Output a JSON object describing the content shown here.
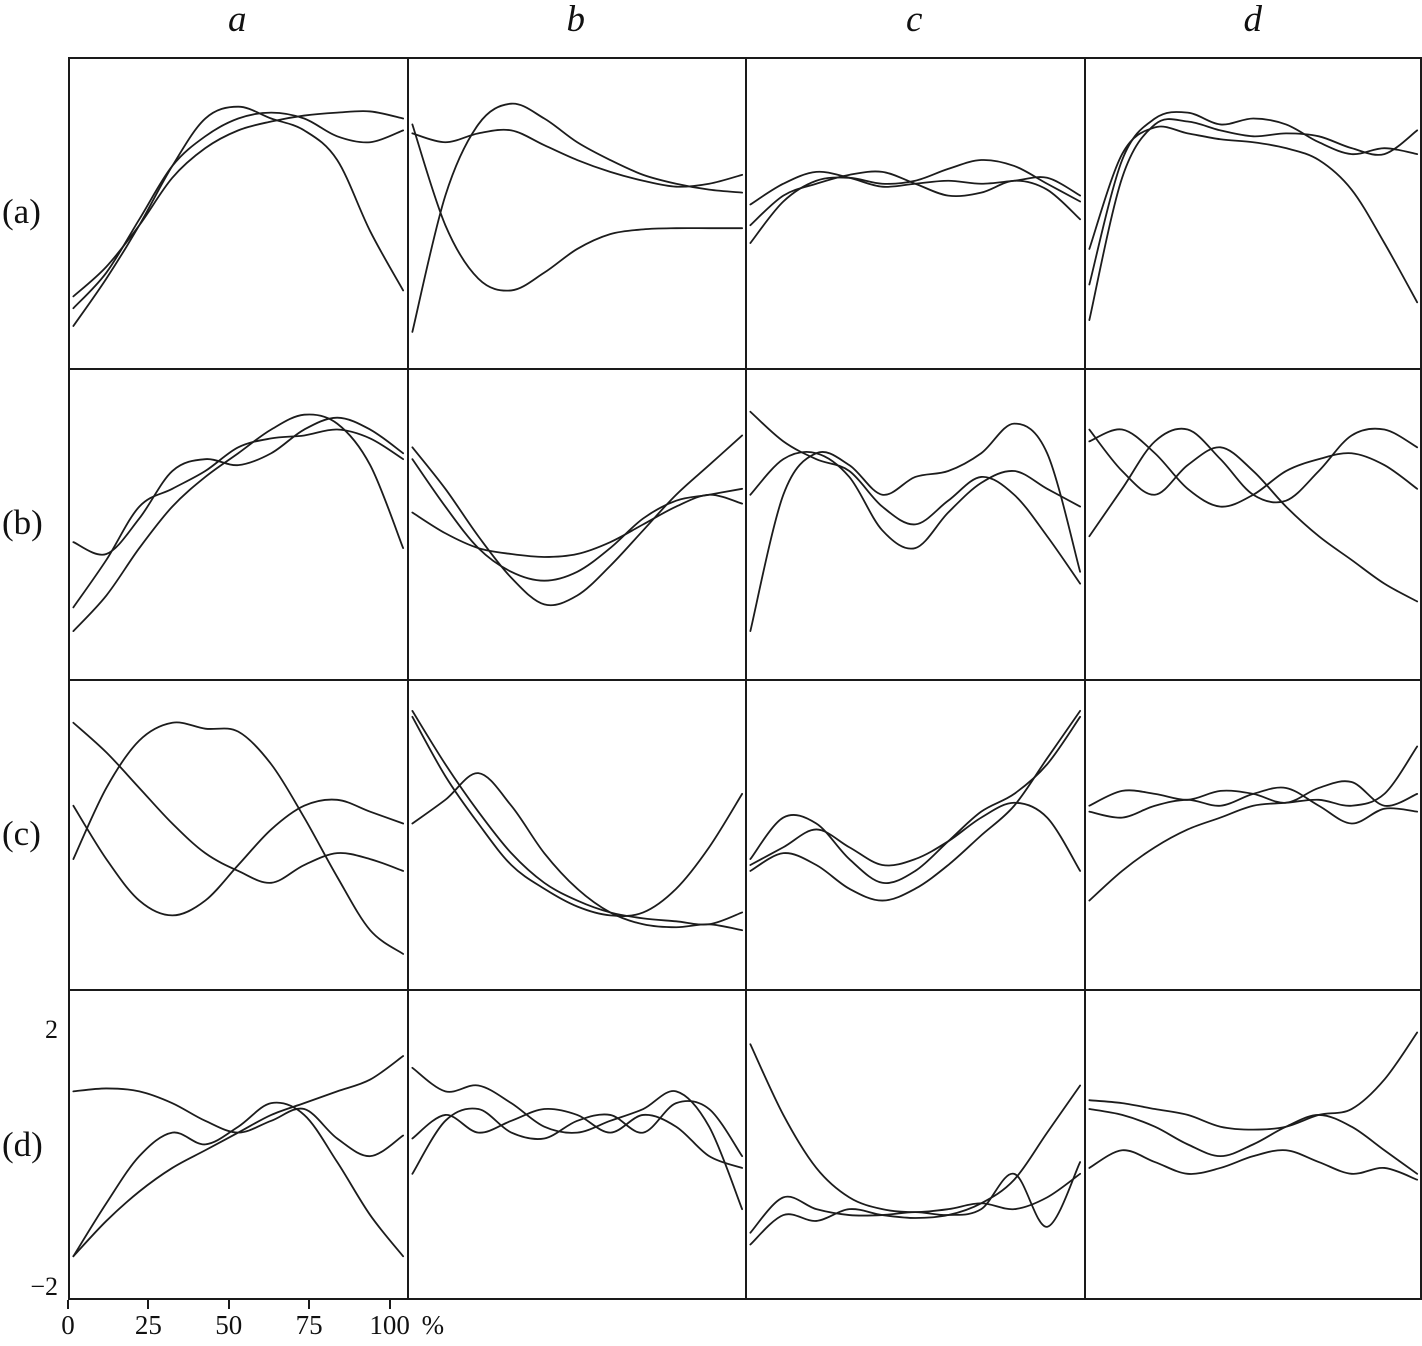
{
  "figure": {
    "col_headers": [
      "a",
      "b",
      "c",
      "d"
    ],
    "row_labels": [
      "(a)",
      "(b)",
      "(c)",
      "(d)"
    ],
    "line_color": "#1c1c1c",
    "background": "#ffffff"
  },
  "axis": {
    "x_tick_labels": [
      "0",
      "25",
      "50",
      "75",
      "100"
    ],
    "x_tick_positions": [
      0,
      23.75,
      47.5,
      71.25,
      95
    ],
    "x_unit": "%",
    "y_top_label": "2",
    "y_bottom_label": "−2",
    "xlim": [
      0,
      100
    ],
    "ylim": [
      -2,
      2
    ]
  },
  "chart_data": {
    "type": "line",
    "title": "4x4 grid of smoothed curve panels; columns a–d, rows (a)–(d); three unlabeled curves per panel",
    "x": [
      0,
      10,
      20,
      30,
      40,
      50,
      60,
      70,
      80,
      90,
      100
    ],
    "xlabel": "%",
    "ylabel": "",
    "ylim": [
      -2.5,
      2.5
    ],
    "grid": false,
    "legend": "none",
    "panels": [
      {
        "id": "aa",
        "row": "(a)",
        "col": "a",
        "series": [
          {
            "values": [
              -1.9,
              -1.1,
              -0.2,
              0.8,
              1.6,
              1.8,
              1.6,
              1.4,
              0.9,
              -0.3,
              -1.3
            ]
          },
          {
            "values": [
              -1.6,
              -1.0,
              -0.1,
              0.8,
              1.3,
              1.6,
              1.7,
              1.6,
              1.3,
              1.2,
              1.4
            ]
          },
          {
            "values": [
              -1.4,
              -0.9,
              -0.2,
              0.6,
              1.1,
              1.4,
              1.55,
              1.65,
              1.7,
              1.72,
              1.6
            ]
          }
        ]
      },
      {
        "id": "ab",
        "row": "(a)",
        "col": "b",
        "series": [
          {
            "values": [
              -2.0,
              0.3,
              1.5,
              1.85,
              1.6,
              1.2,
              0.9,
              0.65,
              0.5,
              0.4,
              0.35
            ]
          },
          {
            "values": [
              1.35,
              1.2,
              1.35,
              1.4,
              1.15,
              0.9,
              0.7,
              0.55,
              0.45,
              0.5,
              0.65
            ]
          },
          {
            "values": [
              1.5,
              -0.2,
              -1.1,
              -1.3,
              -1.0,
              -0.6,
              -0.35,
              -0.27,
              -0.25,
              -0.25,
              -0.25
            ]
          }
        ]
      },
      {
        "id": "ac",
        "row": "(a)",
        "col": "c",
        "series": [
          {
            "values": [
              -0.5,
              0.2,
              0.55,
              0.6,
              0.5,
              0.55,
              0.75,
              0.9,
              0.8,
              0.5,
              0.2
            ]
          },
          {
            "values": [
              0.15,
              0.5,
              0.7,
              0.6,
              0.45,
              0.5,
              0.55,
              0.5,
              0.55,
              0.6,
              0.3
            ]
          },
          {
            "values": [
              -0.2,
              0.3,
              0.5,
              0.65,
              0.7,
              0.5,
              0.3,
              0.35,
              0.55,
              0.4,
              -0.1
            ]
          }
        ]
      },
      {
        "id": "ad",
        "row": "(a)",
        "col": "d",
        "series": [
          {
            "values": [
              -1.8,
              0.6,
              1.5,
              1.55,
              1.4,
              1.3,
              1.35,
              1.3,
              1.1,
              1.0,
              1.4
            ]
          },
          {
            "values": [
              -1.2,
              0.9,
              1.6,
              1.7,
              1.5,
              1.6,
              1.5,
              1.2,
              1.0,
              1.1,
              1.0
            ]
          },
          {
            "values": [
              -0.6,
              1.0,
              1.45,
              1.35,
              1.25,
              1.2,
              1.1,
              0.9,
              0.4,
              -0.5,
              -1.5
            ]
          }
        ]
      },
      {
        "id": "ba",
        "row": "(b)",
        "col": "a",
        "series": [
          {
            "values": [
              -1.8,
              -1.2,
              -0.4,
              0.3,
              0.8,
              1.2,
              1.6,
              1.85,
              1.7,
              1.0,
              -0.4
            ]
          },
          {
            "values": [
              -0.3,
              -0.5,
              0.1,
              0.9,
              1.1,
              1.0,
              1.2,
              1.6,
              1.8,
              1.6,
              1.2
            ]
          },
          {
            "values": [
              -1.4,
              -0.6,
              0.3,
              0.6,
              0.9,
              1.3,
              1.45,
              1.5,
              1.6,
              1.45,
              1.1
            ]
          }
        ]
      },
      {
        "id": "bb",
        "row": "(b)",
        "col": "b",
        "series": [
          {
            "values": [
              1.3,
              0.6,
              -0.2,
              -0.9,
              -1.35,
              -1.2,
              -0.7,
              -0.1,
              0.5,
              1.0,
              1.5
            ]
          },
          {
            "values": [
              1.1,
              0.3,
              -0.4,
              -0.8,
              -0.95,
              -0.8,
              -0.4,
              0.1,
              0.4,
              0.5,
              0.6
            ]
          },
          {
            "values": [
              0.2,
              -0.15,
              -0.4,
              -0.5,
              -0.55,
              -0.5,
              -0.3,
              0.0,
              0.3,
              0.5,
              0.35
            ]
          }
        ]
      },
      {
        "id": "bc",
        "row": "(b)",
        "col": "c",
        "series": [
          {
            "values": [
              -1.8,
              0.5,
              1.2,
              1.0,
              0.5,
              0.8,
              0.9,
              1.2,
              1.7,
              1.2,
              -0.8
            ]
          },
          {
            "values": [
              1.9,
              1.4,
              1.1,
              0.9,
              0.3,
              0.0,
              0.4,
              0.8,
              0.5,
              -0.2,
              -1.0
            ]
          },
          {
            "values": [
              0.5,
              1.1,
              1.2,
              0.8,
              -0.1,
              -0.4,
              0.2,
              0.7,
              0.9,
              0.6,
              0.3
            ]
          }
        ]
      },
      {
        "id": "bd",
        "row": "(b)",
        "col": "d",
        "series": [
          {
            "values": [
              1.6,
              0.9,
              0.5,
              1.0,
              1.3,
              0.9,
              0.3,
              -0.2,
              -0.6,
              -1.0,
              -1.3
            ]
          },
          {
            "values": [
              -0.2,
              0.6,
              1.4,
              1.6,
              1.1,
              0.5,
              0.4,
              0.9,
              1.5,
              1.6,
              1.3
            ]
          },
          {
            "values": [
              1.4,
              1.6,
              1.2,
              0.6,
              0.3,
              0.5,
              0.9,
              1.1,
              1.2,
              1.0,
              0.6
            ]
          }
        ]
      },
      {
        "id": "ca",
        "row": "(c)",
        "col": "a",
        "series": [
          {
            "values": [
              1.9,
              1.4,
              0.8,
              0.2,
              -0.3,
              -0.6,
              -0.8,
              -0.5,
              -0.3,
              -0.4,
              -0.6
            ]
          },
          {
            "values": [
              -0.4,
              0.8,
              1.6,
              1.9,
              1.8,
              1.75,
              1.2,
              0.3,
              -0.7,
              -1.6,
              -2.0
            ]
          },
          {
            "values": [
              0.5,
              -0.4,
              -1.1,
              -1.35,
              -1.1,
              -0.5,
              0.1,
              0.5,
              0.6,
              0.4,
              0.2
            ]
          }
        ]
      },
      {
        "id": "cb",
        "row": "(c)",
        "col": "b",
        "series": [
          {
            "values": [
              2.1,
              1.2,
              0.4,
              -0.3,
              -0.8,
              -1.1,
              -1.3,
              -1.4,
              -1.45,
              -1.5,
              -1.3
            ]
          },
          {
            "values": [
              2.0,
              1.0,
              0.2,
              -0.5,
              -0.9,
              -1.2,
              -1.35,
              -1.3,
              -0.9,
              -0.2,
              0.7
            ]
          },
          {
            "values": [
              0.2,
              0.6,
              1.05,
              0.5,
              -0.3,
              -0.9,
              -1.3,
              -1.5,
              -1.55,
              -1.5,
              -1.6
            ]
          }
        ]
      },
      {
        "id": "cc",
        "row": "(c)",
        "col": "c",
        "series": [
          {
            "values": [
              -0.4,
              0.3,
              0.2,
              -0.4,
              -0.8,
              -0.6,
              -0.1,
              0.4,
              0.7,
              1.2,
              2.0
            ]
          },
          {
            "values": [
              -0.6,
              -0.3,
              -0.5,
              -0.9,
              -1.1,
              -0.9,
              -0.5,
              0.0,
              0.5,
              1.3,
              2.1
            ]
          },
          {
            "values": [
              -0.5,
              -0.2,
              0.1,
              -0.2,
              -0.5,
              -0.4,
              -0.1,
              0.3,
              0.55,
              0.3,
              -0.6
            ]
          }
        ]
      },
      {
        "id": "cd",
        "row": "(c)",
        "col": "d",
        "series": [
          {
            "values": [
              -1.1,
              -0.6,
              -0.2,
              0.1,
              0.3,
              0.5,
              0.55,
              0.6,
              0.5,
              0.7,
              1.5
            ]
          },
          {
            "values": [
              0.5,
              0.75,
              0.7,
              0.6,
              0.75,
              0.7,
              0.55,
              0.8,
              0.9,
              0.5,
              0.7
            ]
          },
          {
            "values": [
              0.4,
              0.3,
              0.5,
              0.6,
              0.5,
              0.7,
              0.8,
              0.5,
              0.2,
              0.45,
              0.4
            ]
          }
        ]
      },
      {
        "id": "da",
        "row": "(d)",
        "col": "a",
        "series": [
          {
            "values": [
              0.9,
              0.95,
              0.9,
              0.7,
              0.4,
              0.2,
              0.4,
              0.6,
              0.1,
              -0.2,
              0.15
            ]
          },
          {
            "values": [
              -1.9,
              -1.3,
              -0.8,
              -0.4,
              -0.1,
              0.2,
              0.5,
              0.7,
              0.9,
              1.1,
              1.5
            ]
          },
          {
            "values": [
              -1.9,
              -1.0,
              -0.2,
              0.2,
              0.0,
              0.3,
              0.7,
              0.5,
              -0.3,
              -1.2,
              -1.9
            ]
          }
        ]
      },
      {
        "id": "db",
        "row": "(d)",
        "col": "b",
        "series": [
          {
            "values": [
              1.3,
              0.9,
              1.0,
              0.7,
              0.3,
              0.2,
              0.4,
              0.6,
              0.9,
              0.3,
              -1.1
            ]
          },
          {
            "values": [
              -0.5,
              0.4,
              0.6,
              0.2,
              0.1,
              0.4,
              0.5,
              0.2,
              0.7,
              0.6,
              -0.2
            ]
          },
          {
            "values": [
              0.1,
              0.5,
              0.2,
              0.4,
              0.6,
              0.5,
              0.2,
              0.5,
              0.3,
              -0.2,
              -0.4
            ]
          }
        ]
      },
      {
        "id": "dc",
        "row": "(d)",
        "col": "c",
        "series": [
          {
            "values": [
              1.7,
              0.5,
              -0.4,
              -0.9,
              -1.1,
              -1.15,
              -1.1,
              -1.0,
              -1.1,
              -0.9,
              -0.5
            ]
          },
          {
            "values": [
              -1.5,
              -0.9,
              -1.1,
              -1.2,
              -1.2,
              -1.15,
              -1.2,
              -1.1,
              -0.5,
              -1.4,
              -0.3
            ]
          },
          {
            "values": [
              -1.7,
              -1.2,
              -1.3,
              -1.1,
              -1.2,
              -1.25,
              -1.2,
              -1.0,
              -0.6,
              0.2,
              1.0
            ]
          }
        ]
      },
      {
        "id": "dd",
        "row": "(d)",
        "col": "d",
        "series": [
          {
            "values": [
              0.75,
              0.7,
              0.6,
              0.5,
              0.3,
              0.25,
              0.3,
              0.5,
              0.6,
              1.1,
              1.9
            ]
          },
          {
            "values": [
              0.6,
              0.5,
              0.3,
              0.0,
              -0.2,
              0.0,
              0.3,
              0.5,
              0.3,
              -0.1,
              -0.5
            ]
          },
          {
            "values": [
              -0.4,
              -0.1,
              -0.3,
              -0.5,
              -0.4,
              -0.2,
              -0.1,
              -0.3,
              -0.5,
              -0.4,
              -0.6
            ]
          }
        ]
      }
    ]
  }
}
